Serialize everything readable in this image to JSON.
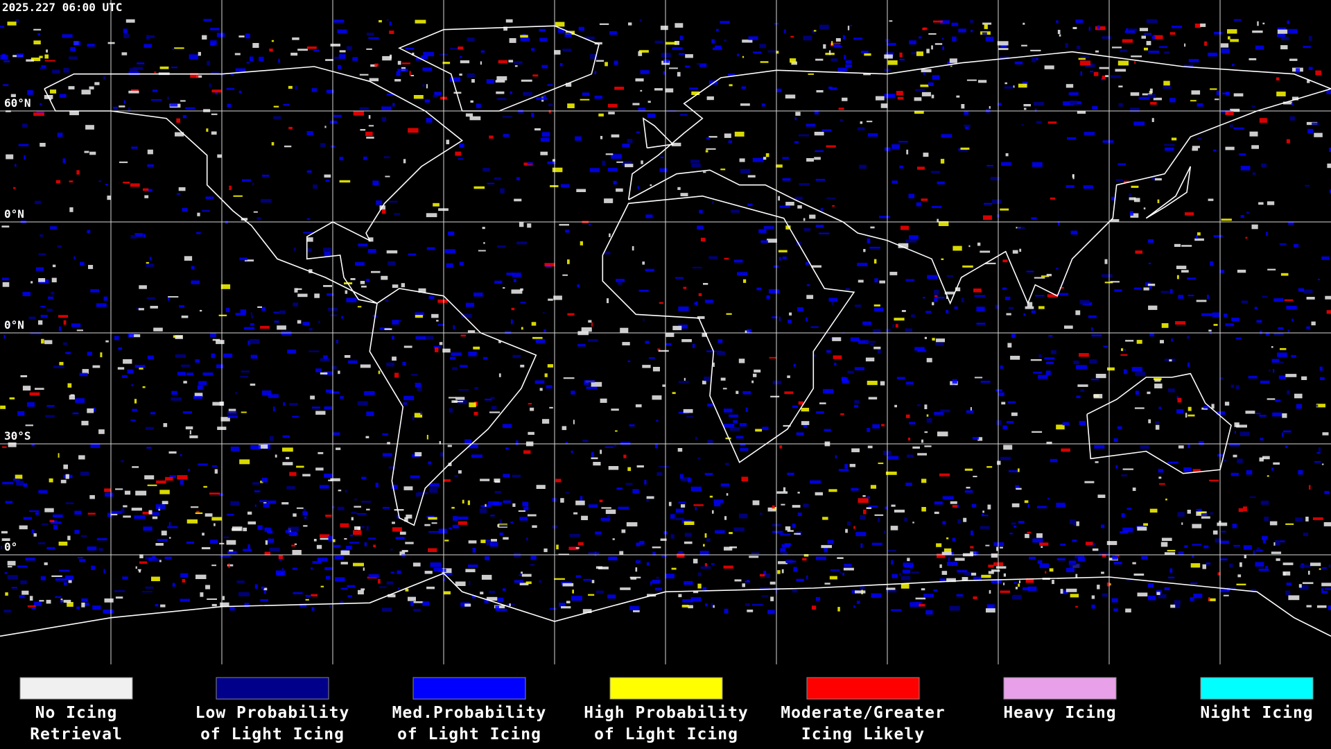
{
  "header": {
    "timestamp": "2025.227 06:00 UTC"
  },
  "lat_labels": [
    "60°N",
    "0°N",
    "0°N",
    "30°S",
    "0°"
  ],
  "legend": [
    {
      "line1": "No Icing",
      "line2": "Retrieval",
      "color": "#f0f0f0"
    },
    {
      "line1": "Low Probability",
      "line2": "of Light Icing",
      "color": "#00008b"
    },
    {
      "line1": "Med.Probability",
      "line2": "of Light Icing",
      "color": "#0000ff"
    },
    {
      "line1": "High Probability",
      "line2": "of Light Icing",
      "color": "#ffff00"
    },
    {
      "line1": "Moderate/Greater",
      "line2": "Icing Likely",
      "color": "#ff0000"
    },
    {
      "line1": "Heavy Icing",
      "line2": "",
      "color": "#e8a0e8"
    },
    {
      "line1": "Night Icing",
      "line2": "",
      "color": "#00ffff"
    }
  ]
}
